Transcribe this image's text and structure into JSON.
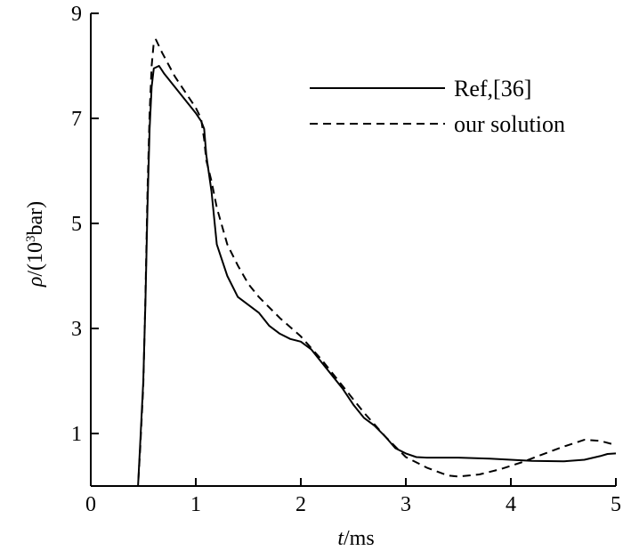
{
  "chart_data": {
    "type": "line",
    "xlabel": {
      "italic": "t",
      "rest": "/ms"
    },
    "ylabel": {
      "italic": "ρ",
      "pre": "/(10",
      "sup": "3",
      "post": "bar)"
    },
    "xlim": [
      0,
      5
    ],
    "ylim": [
      0,
      9
    ],
    "x_ticks": [
      0,
      1,
      2,
      3,
      4,
      5
    ],
    "x_tick_labels": [
      "0",
      "1",
      "2",
      "3",
      "4",
      "5"
    ],
    "y_ticks": [
      1,
      3,
      5,
      7,
      9
    ],
    "y_tick_labels": [
      "1",
      "3",
      "5",
      "7",
      "9"
    ],
    "grid": false,
    "legend": "top-right",
    "series": [
      {
        "name": "Ref,[36]",
        "style": "solid",
        "color": "#000000",
        "x": [
          0,
          0.45,
          0.47,
          0.5,
          0.52,
          0.54,
          0.56,
          0.58,
          0.6,
          0.65,
          0.7,
          0.8,
          0.9,
          1.0,
          1.05,
          1.08,
          1.1,
          1.15,
          1.2,
          1.3,
          1.4,
          1.5,
          1.6,
          1.7,
          1.8,
          1.9,
          2.0,
          2.1,
          2.2,
          2.3,
          2.4,
          2.5,
          2.6,
          2.7,
          2.8,
          2.9,
          3.0,
          3.1,
          3.2,
          3.5,
          3.8,
          4.0,
          4.2,
          4.5,
          4.7,
          4.85,
          4.92,
          5.0
        ],
        "y": [
          0,
          0,
          0.8,
          2.0,
          3.5,
          5.3,
          6.8,
          7.6,
          7.95,
          8.0,
          7.85,
          7.6,
          7.35,
          7.1,
          6.95,
          6.8,
          6.3,
          5.6,
          4.6,
          4.0,
          3.6,
          3.45,
          3.3,
          3.05,
          2.9,
          2.8,
          2.75,
          2.6,
          2.35,
          2.1,
          1.85,
          1.55,
          1.3,
          1.15,
          0.95,
          0.72,
          0.62,
          0.55,
          0.54,
          0.54,
          0.52,
          0.5,
          0.48,
          0.47,
          0.5,
          0.57,
          0.61,
          0.62
        ]
      },
      {
        "name": "our solution",
        "style": "dashed",
        "color": "#000000",
        "x": [
          0,
          0.45,
          0.47,
          0.5,
          0.52,
          0.54,
          0.56,
          0.58,
          0.6,
          0.62,
          0.68,
          0.8,
          0.9,
          1.0,
          1.05,
          1.08,
          1.1,
          1.15,
          1.2,
          1.3,
          1.4,
          1.5,
          1.6,
          1.8,
          2.0,
          2.2,
          2.4,
          2.6,
          2.8,
          3.0,
          3.2,
          3.4,
          3.5,
          3.7,
          3.9,
          4.1,
          4.3,
          4.5,
          4.7,
          4.85,
          5.0
        ],
        "y": [
          0,
          0,
          0.7,
          1.9,
          3.6,
          5.6,
          7.1,
          8.0,
          8.45,
          8.5,
          8.25,
          7.8,
          7.5,
          7.2,
          7.0,
          6.6,
          6.2,
          5.8,
          5.3,
          4.6,
          4.2,
          3.85,
          3.6,
          3.2,
          2.85,
          2.4,
          1.9,
          1.4,
          0.95,
          0.55,
          0.35,
          0.2,
          0.18,
          0.22,
          0.32,
          0.45,
          0.6,
          0.75,
          0.88,
          0.86,
          0.78
        ]
      }
    ]
  }
}
